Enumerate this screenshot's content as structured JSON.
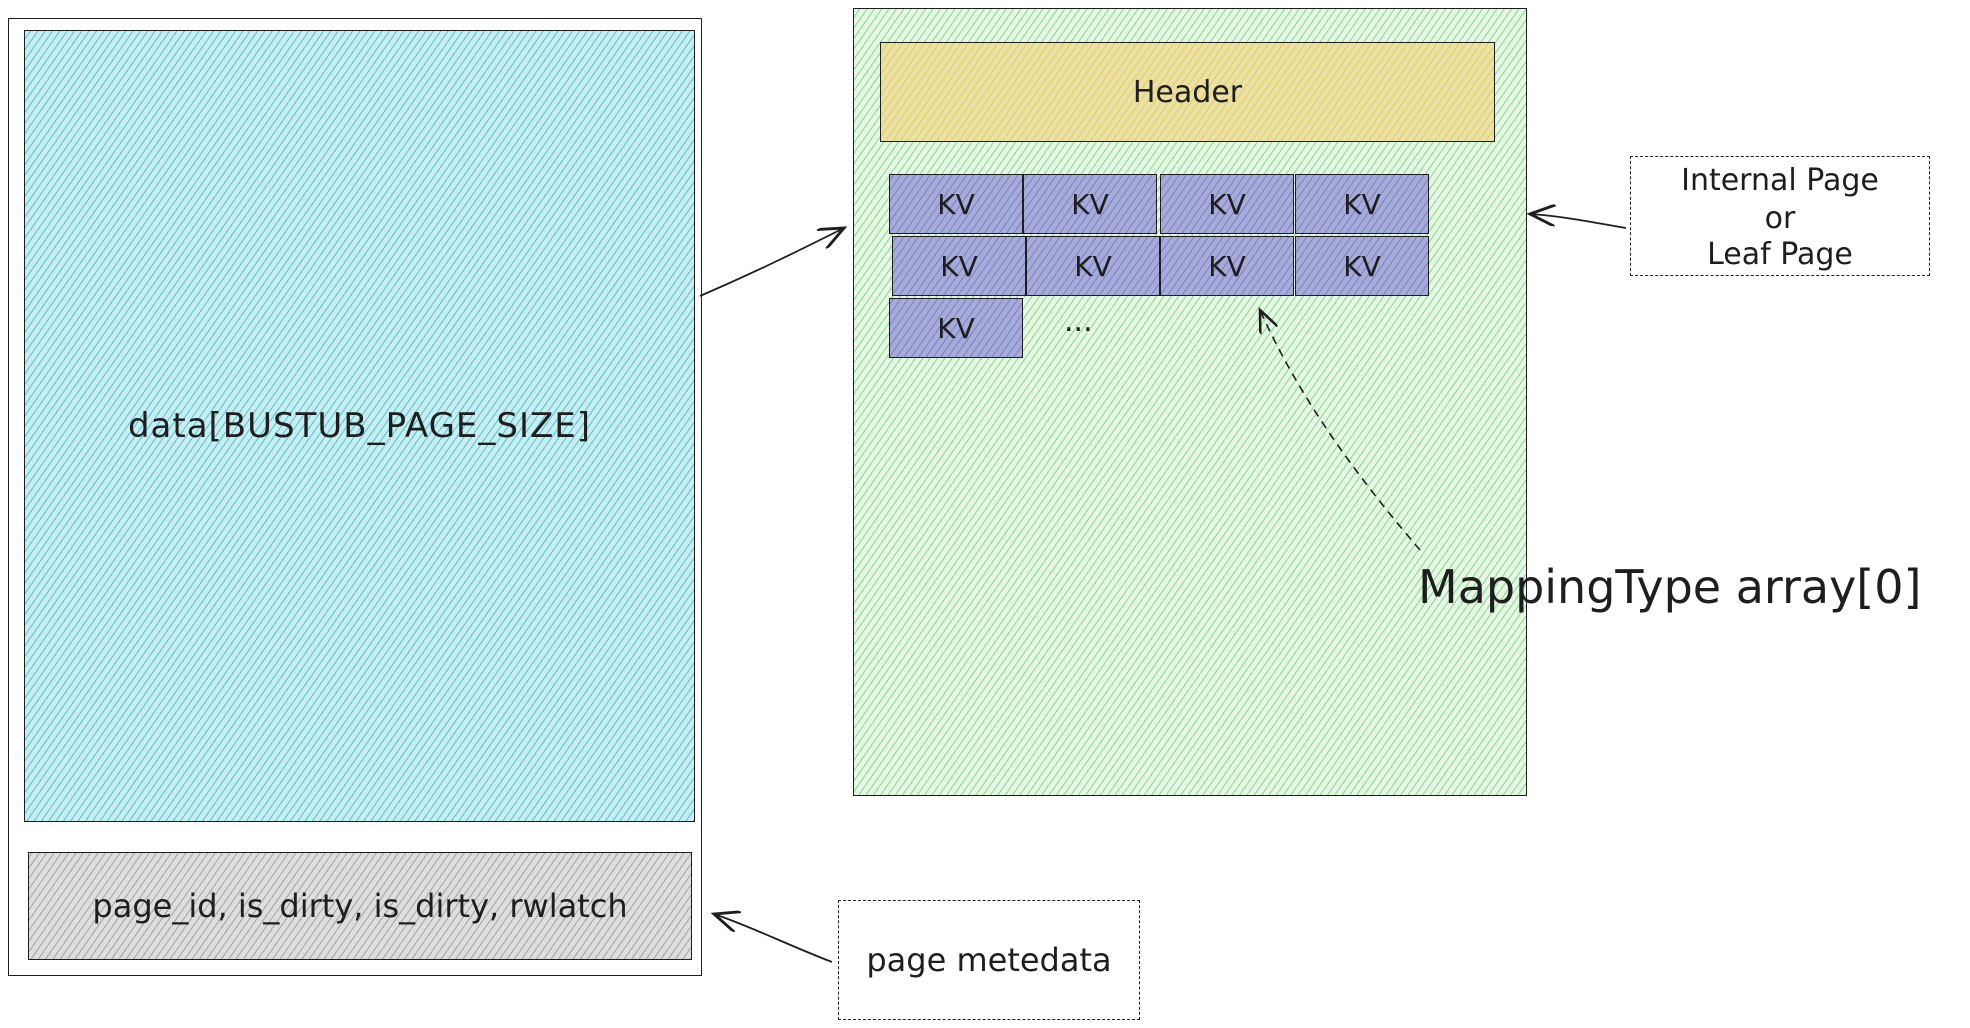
{
  "page": {
    "data_label": "data[BUSTUB_PAGE_SIZE]",
    "metadata_fields": "page_id, is_dirty, is_dirty, rwlatch"
  },
  "bplus_page": {
    "header_label": "Header",
    "kv_cells": [
      "KV",
      "KV",
      "KV",
      "KV",
      "KV",
      "KV",
      "KV",
      "KV",
      "KV"
    ],
    "ellipsis": "..."
  },
  "notes": {
    "page_type_lines": [
      "Internal Page",
      "or",
      "Leaf Page"
    ],
    "page_metadata": "page metedata",
    "mapping_array": "MappingType array[0]"
  },
  "colors": {
    "page_fill": "#15aabf",
    "btree_fill": "#40c057",
    "header_fill": "#fab005",
    "kv_fill": "#505aaa",
    "metadata_fill": "#868e96",
    "stroke": "#1e1e1e"
  }
}
